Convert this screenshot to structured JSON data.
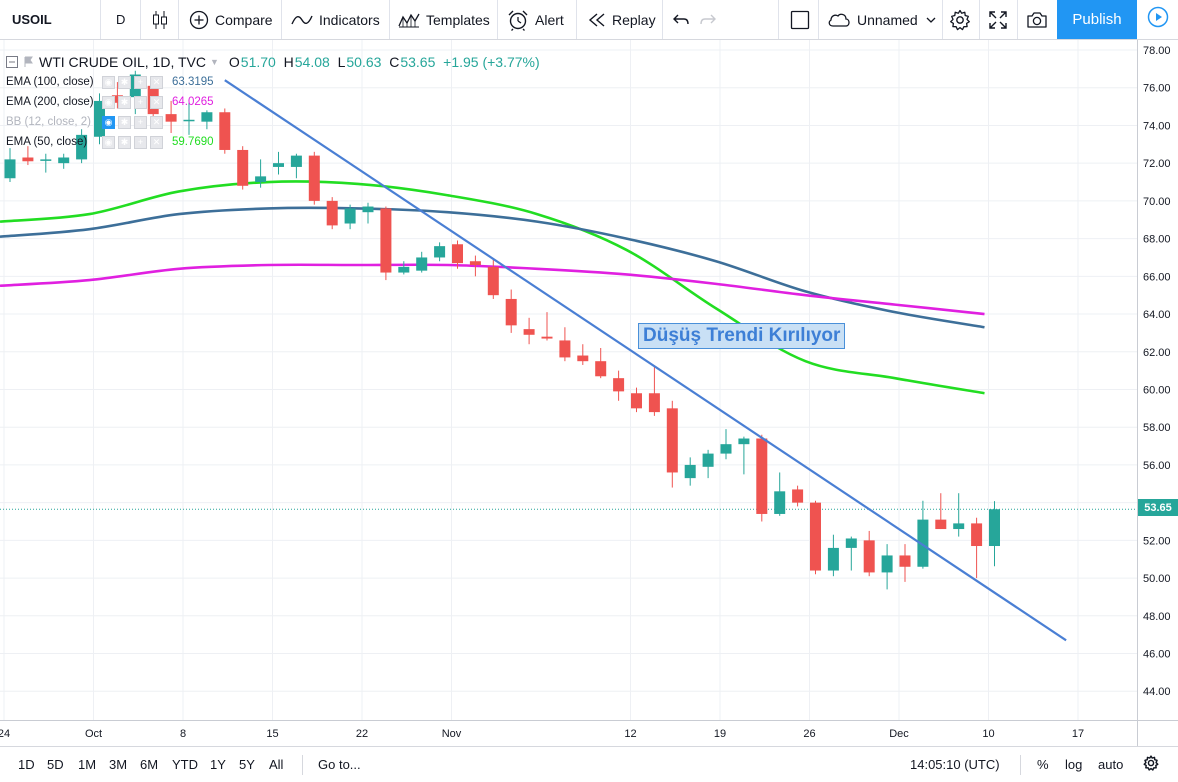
{
  "toolbar": {
    "symbol": "USOIL",
    "interval": "D",
    "compare_label": "Compare",
    "indicators_label": "Indicators",
    "templates_label": "Templates",
    "alert_label": "Alert",
    "replay_label": "Replay",
    "layout_name": "Unnamed",
    "publish_label": "Publish"
  },
  "legend": {
    "title": "WTI CRUDE OIL, 1D, TVC",
    "open_key": "O",
    "open": "51.70",
    "high_key": "H",
    "high": "54.08",
    "low_key": "L",
    "low": "50.63",
    "close_key": "C",
    "close": "53.65",
    "change": "+1.95 (+3.77%)",
    "indicators": [
      {
        "name": "EMA (100, close)",
        "value": "63.3195",
        "color": "#3d6f99"
      },
      {
        "name": "EMA (200, close)",
        "value": "64.0265",
        "color": "#e020e0"
      },
      {
        "name": "BB (12, close, 2)",
        "value": "",
        "color": "#b2b5be"
      },
      {
        "name": "EMA (50, close)",
        "value": "59.7690",
        "color": "#22dd22"
      }
    ]
  },
  "annotation": "Düşüş Trendi Kırılıyor",
  "last_price": "53.65",
  "colors": {
    "up": "#26a69a",
    "down": "#ef5350",
    "trendline": "#4a7fd4",
    "accent": "#2196f3"
  },
  "chart_data": {
    "type": "candlestick",
    "title": "WTI CRUDE OIL, 1D, TVC",
    "ylim": [
      42.5,
      79
    ],
    "y_ticks": [
      "44.00",
      "46.00",
      "48.00",
      "50.00",
      "52.00",
      "54.00",
      "56.00",
      "58.00",
      "60.00",
      "62.00",
      "64.00",
      "66.00",
      "68.00",
      "70.00",
      "72.00",
      "74.00",
      "76.00",
      "78.00"
    ],
    "x_ticks": [
      "24",
      "Oct",
      "8",
      "15",
      "22",
      "Nov",
      "12",
      "19",
      "26",
      "Dec",
      "10",
      "17"
    ],
    "candles": [
      {
        "o": 71.2,
        "h": 72.8,
        "l": 71.0,
        "c": 72.2
      },
      {
        "o": 72.3,
        "h": 72.9,
        "l": 71.9,
        "c": 72.1
      },
      {
        "o": 72.2,
        "h": 72.5,
        "l": 71.5,
        "c": 72.2
      },
      {
        "o": 72.0,
        "h": 72.5,
        "l": 71.7,
        "c": 72.3
      },
      {
        "o": 72.2,
        "h": 73.8,
        "l": 72.0,
        "c": 73.5
      },
      {
        "o": 73.4,
        "h": 75.7,
        "l": 73.0,
        "c": 75.3
      },
      {
        "o": 75.6,
        "h": 76.3,
        "l": 74.9,
        "c": 75.2
      },
      {
        "o": 75.5,
        "h": 76.9,
        "l": 74.6,
        "c": 76.7
      },
      {
        "o": 76.1,
        "h": 76.5,
        "l": 74.0,
        "c": 74.6
      },
      {
        "o": 74.6,
        "h": 75.3,
        "l": 73.6,
        "c": 74.2
      },
      {
        "o": 74.3,
        "h": 75.2,
        "l": 73.5,
        "c": 74.3
      },
      {
        "o": 74.2,
        "h": 74.8,
        "l": 73.8,
        "c": 74.7
      },
      {
        "o": 74.7,
        "h": 74.9,
        "l": 72.5,
        "c": 72.7
      },
      {
        "o": 72.7,
        "h": 72.9,
        "l": 70.6,
        "c": 70.8
      },
      {
        "o": 71.0,
        "h": 72.2,
        "l": 70.7,
        "c": 71.3
      },
      {
        "o": 71.8,
        "h": 72.6,
        "l": 71.4,
        "c": 72.0
      },
      {
        "o": 71.8,
        "h": 72.5,
        "l": 71.2,
        "c": 72.4
      },
      {
        "o": 72.4,
        "h": 72.6,
        "l": 69.8,
        "c": 70.0
      },
      {
        "o": 70.0,
        "h": 70.2,
        "l": 68.5,
        "c": 68.7
      },
      {
        "o": 68.8,
        "h": 69.8,
        "l": 68.5,
        "c": 69.6
      },
      {
        "o": 69.4,
        "h": 69.9,
        "l": 68.8,
        "c": 69.7
      },
      {
        "o": 69.6,
        "h": 69.7,
        "l": 65.8,
        "c": 66.2
      },
      {
        "o": 66.2,
        "h": 66.8,
        "l": 66.1,
        "c": 66.5
      },
      {
        "o": 66.3,
        "h": 67.3,
        "l": 66.2,
        "c": 67.0
      },
      {
        "o": 67.0,
        "h": 67.8,
        "l": 66.8,
        "c": 67.6
      },
      {
        "o": 67.7,
        "h": 67.9,
        "l": 66.4,
        "c": 66.7
      },
      {
        "o": 66.8,
        "h": 67.1,
        "l": 66.0,
        "c": 66.6
      },
      {
        "o": 66.5,
        "h": 66.9,
        "l": 64.8,
        "c": 65.0
      },
      {
        "o": 64.8,
        "h": 65.3,
        "l": 63.0,
        "c": 63.4
      },
      {
        "o": 63.2,
        "h": 63.8,
        "l": 62.4,
        "c": 62.9
      },
      {
        "o": 62.8,
        "h": 64.1,
        "l": 62.6,
        "c": 62.7
      },
      {
        "o": 62.6,
        "h": 63.3,
        "l": 61.5,
        "c": 61.7
      },
      {
        "o": 61.8,
        "h": 62.4,
        "l": 61.3,
        "c": 61.5
      },
      {
        "o": 61.5,
        "h": 62.2,
        "l": 60.6,
        "c": 60.7
      },
      {
        "o": 60.6,
        "h": 61.0,
        "l": 59.4,
        "c": 59.9
      },
      {
        "o": 59.8,
        "h": 60.1,
        "l": 58.8,
        "c": 59.0
      },
      {
        "o": 59.8,
        "h": 61.2,
        "l": 58.6,
        "c": 58.8
      },
      {
        "o": 59.0,
        "h": 59.4,
        "l": 54.8,
        "c": 55.6
      },
      {
        "o": 55.3,
        "h": 56.4,
        "l": 54.9,
        "c": 56.0
      },
      {
        "o": 55.9,
        "h": 56.8,
        "l": 55.3,
        "c": 56.6
      },
      {
        "o": 56.6,
        "h": 57.9,
        "l": 56.3,
        "c": 57.1
      },
      {
        "o": 57.1,
        "h": 57.5,
        "l": 55.5,
        "c": 57.4
      },
      {
        "o": 57.4,
        "h": 57.6,
        "l": 53.0,
        "c": 53.4
      },
      {
        "o": 53.4,
        "h": 55.6,
        "l": 53.3,
        "c": 54.6
      },
      {
        "o": 54.7,
        "h": 54.9,
        "l": 53.8,
        "c": 54.0
      },
      {
        "o": 54.0,
        "h": 54.1,
        "l": 50.2,
        "c": 50.4
      },
      {
        "o": 50.4,
        "h": 52.3,
        "l": 50.1,
        "c": 51.6
      },
      {
        "o": 51.6,
        "h": 52.2,
        "l": 50.4,
        "c": 52.1
      },
      {
        "o": 52.0,
        "h": 52.5,
        "l": 50.1,
        "c": 50.3
      },
      {
        "o": 50.3,
        "h": 51.8,
        "l": 49.4,
        "c": 51.2
      },
      {
        "o": 51.2,
        "h": 51.8,
        "l": 49.8,
        "c": 50.6
      },
      {
        "o": 50.6,
        "h": 54.1,
        "l": 50.5,
        "c": 53.1
      },
      {
        "o": 53.1,
        "h": 54.5,
        "l": 52.6,
        "c": 52.6
      },
      {
        "o": 52.6,
        "h": 54.5,
        "l": 52.2,
        "c": 52.9
      },
      {
        "o": 52.9,
        "h": 53.2,
        "l": 50.0,
        "c": 51.7
      },
      {
        "o": 51.7,
        "h": 54.08,
        "l": 50.63,
        "c": 53.65
      }
    ],
    "series": [
      {
        "name": "EMA (50, close)",
        "color": "#22dd22",
        "values": [
          [
            0,
            68.9
          ],
          [
            5,
            69.3
          ],
          [
            10,
            70.5
          ],
          [
            15,
            71.0
          ],
          [
            20,
            70.9
          ],
          [
            25,
            70.3
          ],
          [
            30,
            69.3
          ],
          [
            35,
            67.4
          ],
          [
            40,
            64.3
          ],
          [
            45,
            61.5
          ],
          [
            50,
            60.6
          ],
          [
            55,
            59.8
          ]
        ]
      },
      {
        "name": "EMA (100, close)",
        "color": "#3d6f99",
        "values": [
          [
            0,
            68.1
          ],
          [
            5,
            68.5
          ],
          [
            10,
            69.3
          ],
          [
            15,
            69.6
          ],
          [
            20,
            69.6
          ],
          [
            25,
            69.4
          ],
          [
            30,
            68.9
          ],
          [
            35,
            68.0
          ],
          [
            40,
            66.8
          ],
          [
            45,
            65.2
          ],
          [
            50,
            64.1
          ],
          [
            55,
            63.3
          ]
        ]
      },
      {
        "name": "EMA (200, close)",
        "color": "#e020e0",
        "values": [
          [
            0,
            65.5
          ],
          [
            5,
            65.8
          ],
          [
            10,
            66.4
          ],
          [
            15,
            66.6
          ],
          [
            20,
            66.6
          ],
          [
            25,
            66.6
          ],
          [
            30,
            66.4
          ],
          [
            35,
            66.1
          ],
          [
            40,
            65.6
          ],
          [
            45,
            65.0
          ],
          [
            50,
            64.5
          ],
          [
            55,
            64.0
          ]
        ]
      }
    ],
    "trendline": {
      "from": [
        12,
        76.4
      ],
      "to": [
        59,
        46.7
      ]
    }
  },
  "bottom_bar": {
    "ranges": [
      "1D",
      "5D",
      "1M",
      "3M",
      "6M",
      "YTD",
      "1Y",
      "5Y",
      "All"
    ],
    "goto_label": "Go to...",
    "clock": "14:05:10 (UTC)",
    "percent_label": "%",
    "log_label": "log",
    "auto_label": "auto"
  }
}
